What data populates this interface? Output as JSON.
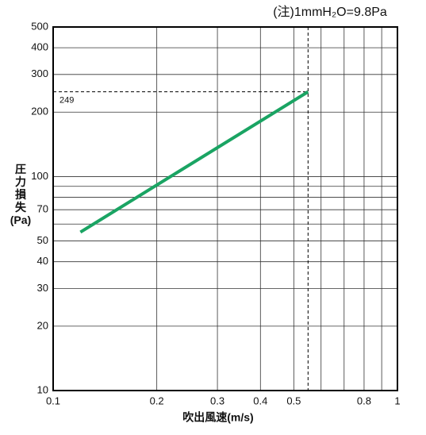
{
  "chart_data": {
    "type": "line",
    "note": "(注)1mmH₂O=9.8Pa",
    "xlabel": "吹出風速(m/s)",
    "ylabel": "圧力損失(Pa)",
    "xscale": "log",
    "yscale": "log",
    "xlim": [
      0.1,
      1
    ],
    "ylim": [
      10,
      500
    ],
    "xticks": [
      0.1,
      0.2,
      0.3,
      0.4,
      0.5,
      0.8,
      1
    ],
    "xgrid": [
      0.6,
      0.7,
      0.9
    ],
    "yticks": [
      10,
      20,
      30,
      40,
      50,
      70,
      100,
      200,
      300,
      400,
      500
    ],
    "ygrid": [
      60,
      80,
      90
    ],
    "series": [
      {
        "color": "#1aa463",
        "x": [
          0.12,
          0.55
        ],
        "values": [
          55,
          249
        ]
      }
    ],
    "reference": {
      "x": 0.55,
      "y": 249,
      "label": "249"
    }
  }
}
